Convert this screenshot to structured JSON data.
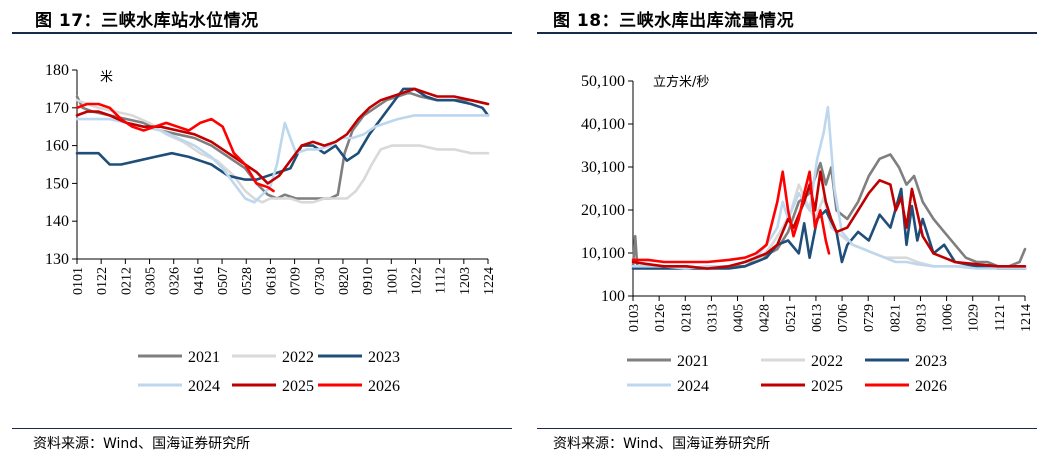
{
  "left": {
    "title": "图 17：三峡水库站水位情况",
    "source": "资料来源：Wind、国海证券研究所",
    "chart_data": {
      "type": "line",
      "ylabel": "米",
      "ylim": [
        130,
        180
      ],
      "yticks": [
        "130",
        "140",
        "150",
        "160",
        "170",
        "180"
      ],
      "xtick_labels": [
        "0101",
        "0122",
        "0212",
        "0305",
        "0326",
        "0416",
        "0507",
        "0528",
        "0618",
        "0709",
        "0730",
        "0820",
        "0910",
        "1001",
        "1022",
        "1112",
        "1203",
        "1224"
      ],
      "x_domain": [
        1,
        365
      ],
      "series": [
        {
          "name": "2021",
          "color": "#7f7f7f",
          "x": [
            1,
            6,
            15,
            30,
            45,
            60,
            75,
            90,
            105,
            120,
            135,
            150,
            160,
            170,
            178,
            185,
            195,
            210,
            225,
            232,
            238,
            245,
            255,
            265,
            275,
            285,
            295,
            305,
            320,
            335,
            350,
            365
          ],
          "values": [
            173,
            170,
            169,
            168,
            167,
            166,
            164,
            163,
            162,
            160,
            157,
            154,
            150,
            147,
            146,
            147,
            146,
            146,
            146,
            147,
            158,
            164,
            168,
            170,
            172,
            173,
            174,
            173,
            172,
            172,
            172,
            171
          ]
        },
        {
          "name": "2022",
          "color": "#d9d9d9",
          "x": [
            1,
            10,
            20,
            35,
            50,
            65,
            80,
            95,
            110,
            125,
            140,
            150,
            158,
            165,
            172,
            180,
            190,
            200,
            210,
            220,
            230,
            240,
            248,
            255,
            262,
            270,
            280,
            290,
            305,
            320,
            335,
            350,
            365
          ],
          "values": [
            172,
            171,
            170,
            169,
            168,
            166,
            163,
            161,
            158,
            156,
            152,
            148,
            146,
            145,
            146,
            146,
            146,
            145,
            145,
            146,
            146,
            146,
            148,
            151,
            155,
            159,
            160,
            160,
            160,
            159,
            159,
            158,
            158
          ]
        },
        {
          "name": "2023",
          "color": "#1f4e79",
          "x": [
            1,
            10,
            20,
            30,
            40,
            55,
            70,
            85,
            100,
            110,
            120,
            135,
            150,
            160,
            170,
            180,
            190,
            200,
            210,
            220,
            230,
            240,
            250,
            260,
            270,
            280,
            290,
            300,
            310,
            320,
            335,
            350,
            360,
            365
          ],
          "values": [
            158,
            158,
            158,
            155,
            155,
            156,
            157,
            158,
            157,
            156,
            155,
            152,
            151,
            151,
            152,
            153,
            154,
            160,
            160,
            158,
            160,
            156,
            158,
            163,
            167,
            171,
            175,
            175,
            173,
            172,
            172,
            171,
            170,
            168
          ]
        },
        {
          "name": "2024",
          "color": "#bdd7ee",
          "x": [
            1,
            15,
            30,
            45,
            60,
            75,
            90,
            105,
            120,
            130,
            140,
            150,
            158,
            165,
            172,
            178,
            185,
            195,
            205,
            215,
            225,
            235,
            245,
            255,
            265,
            275,
            285,
            300,
            315,
            330,
            345,
            360,
            365
          ],
          "values": [
            167,
            167,
            167,
            166,
            165,
            164,
            162,
            160,
            157,
            154,
            150,
            146,
            145,
            147,
            149,
            155,
            166,
            158,
            159,
            159,
            160,
            162,
            162,
            163,
            165,
            166,
            167,
            168,
            168,
            168,
            168,
            168,
            168
          ]
        },
        {
          "name": "2025",
          "color": "#c00000",
          "x": [
            1,
            10,
            20,
            30,
            45,
            60,
            75,
            90,
            105,
            120,
            135,
            150,
            160,
            170,
            180,
            190,
            200,
            210,
            220,
            230,
            240,
            250,
            260,
            270,
            280,
            290,
            300,
            310,
            320,
            335,
            350,
            365
          ],
          "values": [
            168,
            169,
            169,
            168,
            166,
            165,
            165,
            164,
            163,
            161,
            158,
            155,
            153,
            150,
            152,
            156,
            160,
            161,
            160,
            161,
            163,
            167,
            170,
            172,
            173,
            174,
            175,
            174,
            173,
            173,
            172,
            171
          ]
        },
        {
          "name": "2026",
          "color": "#ff0000",
          "x": [
            1,
            10,
            20,
            30,
            40,
            50,
            60,
            70,
            80,
            90,
            100,
            110,
            120,
            130,
            140,
            150,
            160,
            170,
            175
          ],
          "values": [
            170,
            171,
            171,
            170,
            167,
            165,
            164,
            165,
            166,
            165,
            164,
            166,
            167,
            165,
            158,
            155,
            150,
            149,
            148
          ]
        }
      ],
      "legend": [
        "2021",
        "2022",
        "2023",
        "2024",
        "2025",
        "2026"
      ],
      "legend_position": "bottom"
    }
  },
  "right": {
    "title": "图 18：三峡水库出库流量情况",
    "source": "资料来源：Wind、国海证券研究所",
    "chart_data": {
      "type": "line",
      "ylabel": "立方米/秒",
      "ylim": [
        100,
        50100
      ],
      "yticks": [
        "100",
        "10,100",
        "20,100",
        "30,100",
        "40,100",
        "50,100"
      ],
      "xtick_labels": [
        "0103",
        "0126",
        "0218",
        "0313",
        "0405",
        "0428",
        "0521",
        "0613",
        "0706",
        "0729",
        "0821",
        "0913",
        "1006",
        "1029",
        "1121",
        "1214"
      ],
      "x_domain": [
        1,
        365
      ],
      "series": [
        {
          "name": "2021",
          "color": "#7f7f7f",
          "x": [
            1,
            3,
            5,
            15,
            30,
            50,
            70,
            90,
            105,
            120,
            135,
            145,
            155,
            165,
            175,
            180,
            185,
            190,
            200,
            210,
            220,
            230,
            240,
            248,
            255,
            262,
            270,
            280,
            290,
            300,
            310,
            320,
            330,
            340,
            350,
            360,
            365
          ],
          "values": [
            7000,
            14000,
            7000,
            7000,
            7000,
            7000,
            6500,
            7000,
            7000,
            9000,
            11000,
            15000,
            22000,
            24000,
            31000,
            26000,
            30000,
            20000,
            18000,
            22000,
            28000,
            32000,
            33000,
            30000,
            26000,
            28000,
            22000,
            18000,
            15000,
            12000,
            9000,
            8000,
            8000,
            7000,
            7000,
            8000,
            11000
          ]
        },
        {
          "name": "2022",
          "color": "#d9d9d9",
          "x": [
            1,
            15,
            30,
            50,
            70,
            90,
            105,
            120,
            130,
            140,
            148,
            155,
            162,
            170,
            178,
            185,
            195,
            205,
            215,
            225,
            235,
            245,
            255,
            265,
            280,
            300,
            320,
            340,
            365
          ],
          "values": [
            7000,
            6500,
            6500,
            6500,
            7000,
            7000,
            8000,
            9000,
            12000,
            16000,
            20000,
            26000,
            22000,
            18000,
            23000,
            16000,
            14000,
            12000,
            11000,
            10000,
            9000,
            9000,
            9000,
            8000,
            7000,
            7000,
            7000,
            6500,
            6500
          ]
        },
        {
          "name": "2023",
          "color": "#1f4e79",
          "x": [
            1,
            15,
            30,
            50,
            70,
            90,
            105,
            115,
            125,
            135,
            145,
            155,
            160,
            165,
            172,
            180,
            190,
            195,
            200,
            210,
            220,
            230,
            240,
            250,
            255,
            260,
            265,
            270,
            280,
            290,
            300,
            320,
            340,
            355,
            365
          ],
          "values": [
            6500,
            6500,
            6500,
            6500,
            6500,
            6500,
            7000,
            8000,
            9000,
            12000,
            13000,
            10000,
            17000,
            9000,
            18000,
            20000,
            15000,
            8000,
            12000,
            15000,
            13000,
            19000,
            16000,
            25000,
            12000,
            21000,
            13000,
            18000,
            10000,
            12000,
            8000,
            7000,
            6500,
            6500,
            6500
          ]
        },
        {
          "name": "2024",
          "color": "#bdd7ee",
          "x": [
            1,
            15,
            30,
            50,
            70,
            90,
            105,
            115,
            125,
            135,
            140,
            145,
            155,
            165,
            172,
            178,
            182,
            188,
            195,
            205,
            215,
            225,
            235,
            245,
            255,
            265,
            280,
            300,
            320,
            340,
            365
          ],
          "values": [
            7000,
            7000,
            7000,
            6500,
            7000,
            7000,
            8000,
            9000,
            12000,
            16000,
            22000,
            18000,
            24000,
            20000,
            32000,
            38000,
            44000,
            25000,
            15000,
            12000,
            11000,
            10000,
            9000,
            8000,
            8000,
            7500,
            7000,
            7000,
            6500,
            6500,
            6500
          ]
        },
        {
          "name": "2025",
          "color": "#c00000",
          "x": [
            1,
            15,
            30,
            50,
            70,
            90,
            105,
            115,
            125,
            135,
            140,
            145,
            150,
            160,
            165,
            170,
            175,
            180,
            185,
            190,
            200,
            210,
            220,
            230,
            240,
            245,
            250,
            255,
            260,
            270,
            280,
            290,
            300,
            320,
            340,
            365
          ],
          "values": [
            8000,
            7500,
            7000,
            7000,
            6500,
            7000,
            8000,
            9000,
            10000,
            12000,
            15000,
            18000,
            16000,
            22000,
            26000,
            20000,
            29000,
            22000,
            18000,
            15000,
            16000,
            20000,
            24000,
            27000,
            26000,
            20000,
            23000,
            16000,
            25000,
            14000,
            10000,
            9000,
            8000,
            7500,
            7000,
            7000
          ]
        },
        {
          "name": "2026",
          "color": "#ff0000",
          "x": [
            1,
            15,
            30,
            50,
            70,
            90,
            105,
            115,
            125,
            135,
            140,
            145,
            150,
            155,
            160,
            165,
            170,
            175,
            180,
            183
          ],
          "values": [
            8500,
            8500,
            8000,
            8000,
            8000,
            8500,
            9000,
            10000,
            12000,
            22000,
            29000,
            20000,
            14000,
            18000,
            24000,
            29000,
            16000,
            20000,
            13000,
            10000
          ]
        }
      ],
      "legend": [
        "2021",
        "2022",
        "2023",
        "2024",
        "2025",
        "2026"
      ],
      "legend_position": "bottom"
    }
  }
}
